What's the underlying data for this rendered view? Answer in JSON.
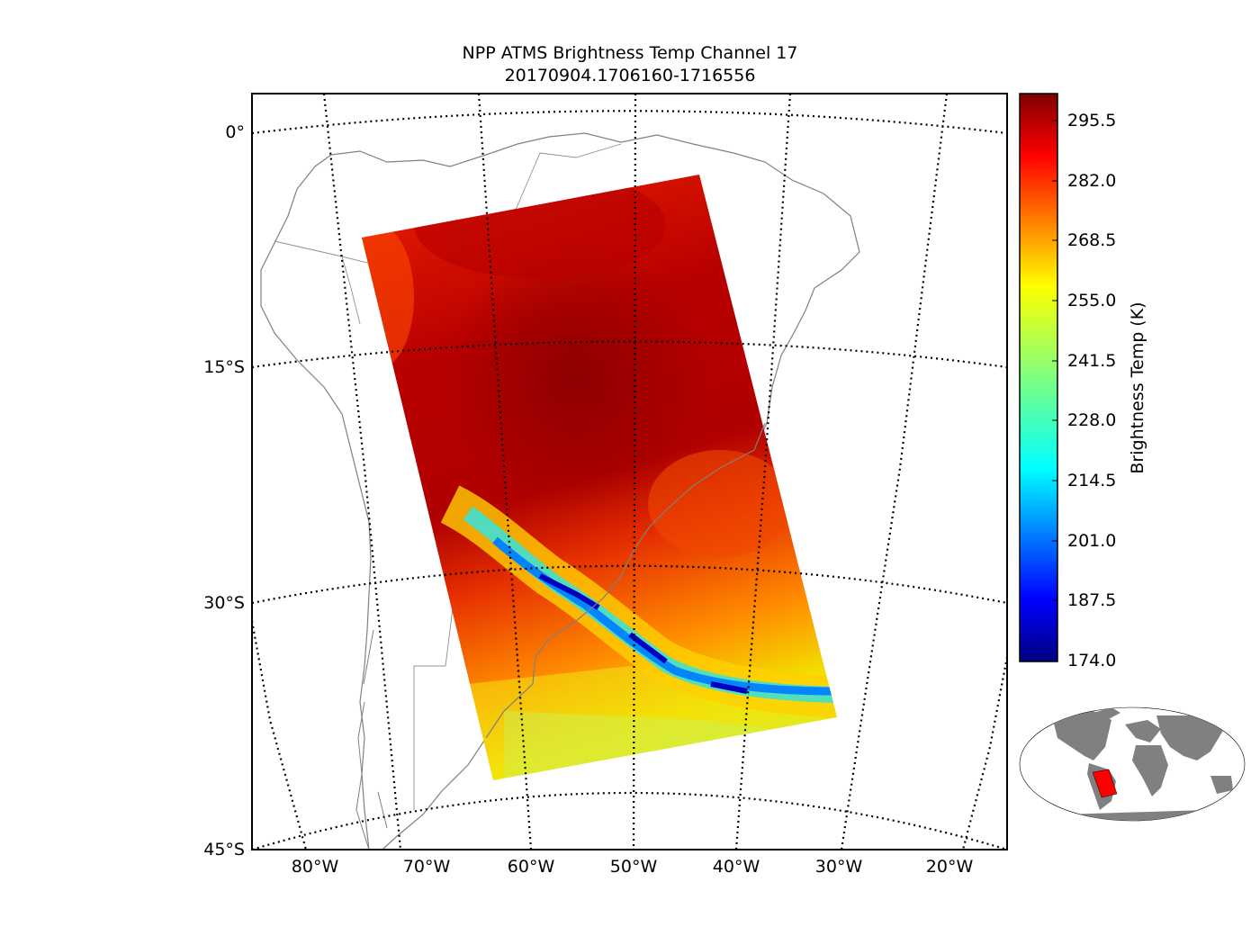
{
  "title": {
    "line1": "NPP ATMS Brightness Temp Channel 17",
    "line2": "20170904.1706160-1716556"
  },
  "map": {
    "region": "South America",
    "lat_labels": [
      "0°",
      "15°S",
      "30°S",
      "45°S"
    ],
    "lon_labels": [
      "80°W",
      "70°W",
      "60°W",
      "50°W",
      "40°W",
      "30°W",
      "20°W"
    ],
    "coastline_color": "#808080",
    "gridline_style": "dotted"
  },
  "colorbar": {
    "label": "Brightness Temp (K)",
    "ticks": [
      "295.5",
      "282.0",
      "268.5",
      "255.0",
      "241.5",
      "228.0",
      "214.5",
      "201.0",
      "187.5",
      "174.0"
    ],
    "min": 174.0,
    "max": 302.0,
    "colormap": "jet"
  },
  "inset": {
    "type": "world-locator",
    "land_color": "#808080",
    "swath_color": "#ff0000"
  }
}
